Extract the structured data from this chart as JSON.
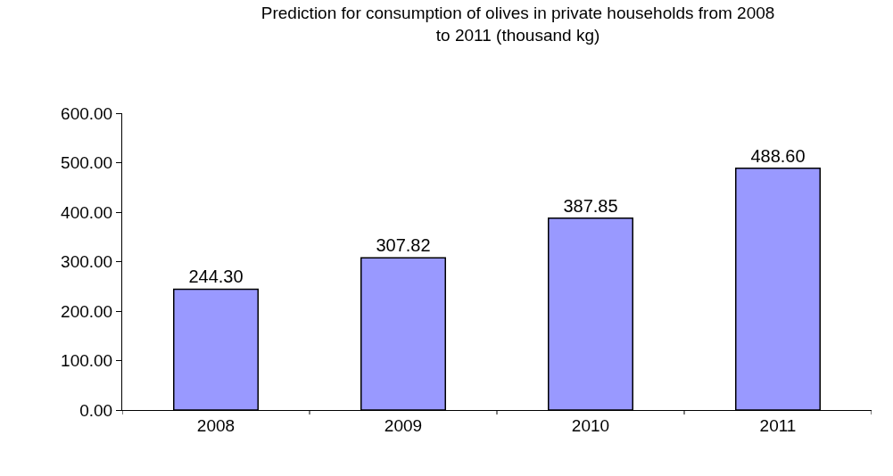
{
  "chart_data": {
    "type": "bar",
    "title": "Prediction for consumption of olives in private households from 2008\nto 2011 (thousand kg)",
    "categories": [
      "2008",
      "2009",
      "2010",
      "2011"
    ],
    "values": [
      244.3,
      307.82,
      387.85,
      488.6
    ],
    "value_labels": [
      "244.30",
      "307.82",
      "387.85",
      "488.60"
    ],
    "color": "#9999ff",
    "ylim": [
      0,
      600
    ],
    "yticks": [
      {
        "value": 0,
        "label": "0.00"
      },
      {
        "value": 100,
        "label": "100.00"
      },
      {
        "value": 200,
        "label": "200.00"
      },
      {
        "value": 300,
        "label": "300.00"
      },
      {
        "value": 400,
        "label": "400.00"
      },
      {
        "value": 500,
        "label": "500.00"
      },
      {
        "value": 600,
        "label": "600.00"
      }
    ],
    "legend": false
  }
}
